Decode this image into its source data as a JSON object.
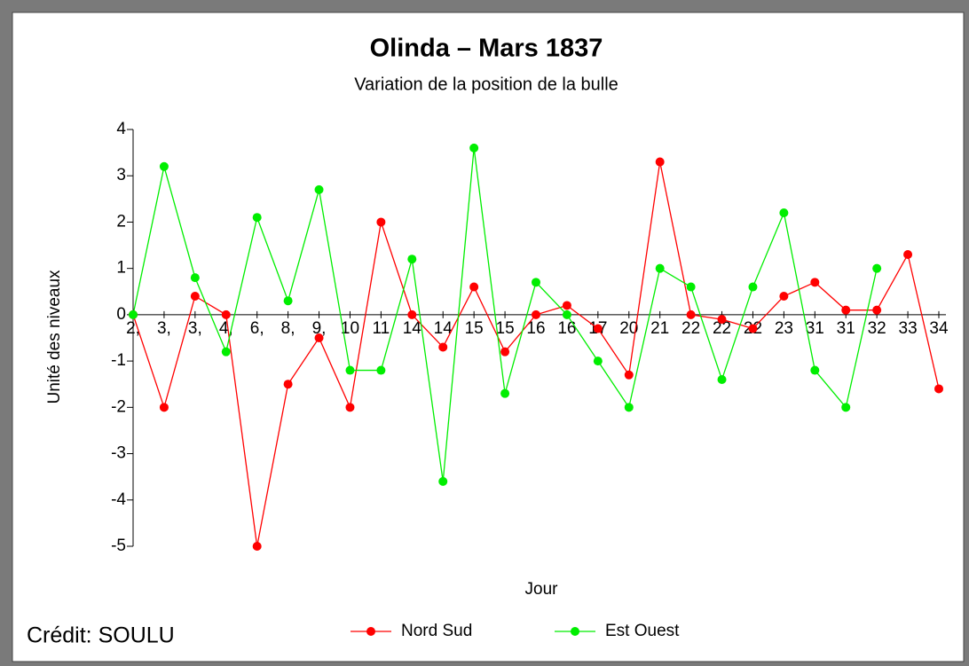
{
  "chart_data": {
    "type": "line",
    "title": "Olinda – Mars 1837",
    "subtitle": "Variation de la position de la bulle",
    "x_label": "Jour",
    "y_label": "Unité des niveaux",
    "credit": "Crédit: SOULU",
    "categories": [
      "2,",
      "3,",
      "3,",
      "4,",
      "6,",
      "8,",
      "9,",
      "10",
      "11",
      "14",
      "14",
      "15",
      "15",
      "16",
      "16",
      "17",
      "20",
      "21",
      "22",
      "22",
      "22",
      "23",
      "31",
      "31",
      "32",
      "33",
      "34"
    ],
    "series": [
      {
        "name": "Nord Sud",
        "color": "#ff0000",
        "values": [
          0,
          -2,
          0.4,
          0,
          -5,
          -1.5,
          -0.5,
          -2,
          2,
          0,
          -0.7,
          0.6,
          -0.8,
          0,
          0.2,
          -0.3,
          -1.3,
          3.3,
          0,
          -0.1,
          -0.3,
          0.4,
          0.7,
          0.1,
          0.1,
          1.3,
          -1.6
        ]
      },
      {
        "name": "Est Ouest",
        "color": "#00ee00",
        "values": [
          0,
          3.2,
          0.8,
          -0.8,
          2.1,
          0.3,
          2.7,
          -1.2,
          -1.2,
          1.2,
          -3.6,
          3.6,
          -1.7,
          0.7,
          0,
          -1.0,
          -2.0,
          1.0,
          0.6,
          -1.4,
          0.6,
          2.2,
          -1.2,
          -2.0,
          1.0,
          null,
          null
        ]
      }
    ],
    "ylim": [
      -5,
      4
    ],
    "yticks": [
      -5,
      -4,
      -3,
      -2,
      -1,
      0,
      1,
      2,
      3,
      4
    ],
    "grid": false,
    "legend": "bottom"
  }
}
